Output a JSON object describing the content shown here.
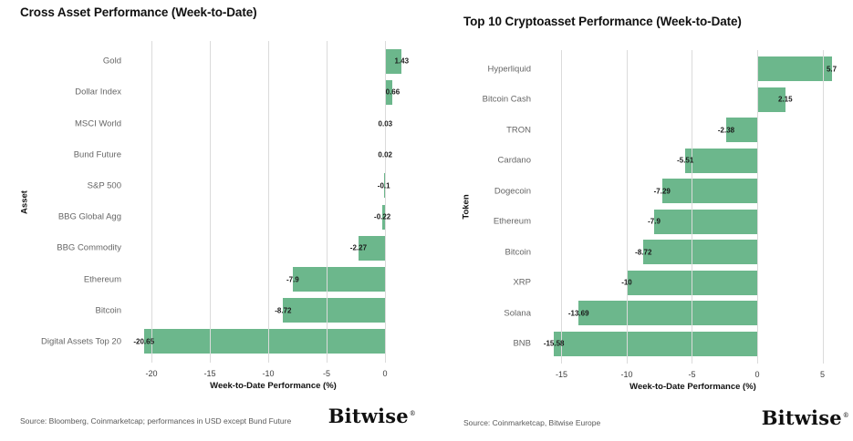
{
  "colors": {
    "bar": "#6CB78C",
    "grid": "#DBDBDB",
    "background": "#FFFFFF",
    "category_label": "#666666",
    "value_label": "#1A1A1A",
    "title": "#111111",
    "source": "#595959"
  },
  "chart_data": [
    {
      "type": "bar",
      "orientation": "horizontal",
      "title": "Cross Asset Performance (Week-to-Date)",
      "xlabel": "Week-to-Date Performance (%)",
      "ylabel": "Asset",
      "categories": [
        "Gold",
        "Dollar Index",
        "MSCI World",
        "Bund Future",
        "S&P 500",
        "BBG Global Agg",
        "BBG Commodity",
        "Ethereum",
        "Bitcoin",
        "Digital Assets Top 20"
      ],
      "values": [
        1.43,
        0.66,
        0.03,
        0.02,
        -0.1,
        -0.22,
        -2.27,
        -7.9,
        -8.72,
        -20.65
      ],
      "value_labels": [
        "1.43",
        "0.66",
        "0.03",
        "0.02",
        "-0.1",
        "-0.22",
        "-2.27",
        "-7.9",
        "-8.72",
        "-20.65"
      ],
      "xticks": [
        -20,
        -15,
        -10,
        -5,
        0
      ],
      "xtick_labels": [
        "-20",
        "-15",
        "-10",
        "-5",
        "0"
      ],
      "xlim": [
        -21.8,
        2.66
      ],
      "grid": true,
      "legend_position": "none",
      "bar_color": "#6CB78C",
      "source": "Source: Bloomberg, Coinmarketcap; performances in USD except Bund Future",
      "logo_text": "Bitwise",
      "logo_mark": "®"
    },
    {
      "type": "bar",
      "orientation": "horizontal",
      "title": "Top 10 Cryptoasset Performance (Week-to-Date)",
      "xlabel": "Week-to-Date Performance (%)",
      "ylabel": "Token",
      "categories": [
        "Hyperliquid",
        "Bitcoin Cash",
        "TRON",
        "Cardano",
        "Dogecoin",
        "Ethereum",
        "Bitcoin",
        "XRP",
        "Solana",
        "BNB"
      ],
      "values": [
        5.7,
        2.15,
        -2.38,
        -5.51,
        -7.29,
        -7.9,
        -8.72,
        -10,
        -13.69,
        -15.58
      ],
      "value_labels": [
        "5.7",
        "2.15",
        "-2.38",
        "-5.51",
        "-7.29",
        "-7.9",
        "-8.72",
        "-10",
        "-13.69",
        "-15.58"
      ],
      "xticks": [
        -15,
        -10,
        -5,
        0,
        5
      ],
      "xtick_labels": [
        "-15",
        "-10",
        "-5",
        "0",
        "5"
      ],
      "xlim": [
        -16.64,
        6.78
      ],
      "grid": true,
      "legend_position": "none",
      "bar_color": "#6CB78C",
      "source": "Source: Coinmarketcap, Bitwise Europe",
      "logo_text": "Bitwise",
      "logo_mark": "®"
    }
  ]
}
